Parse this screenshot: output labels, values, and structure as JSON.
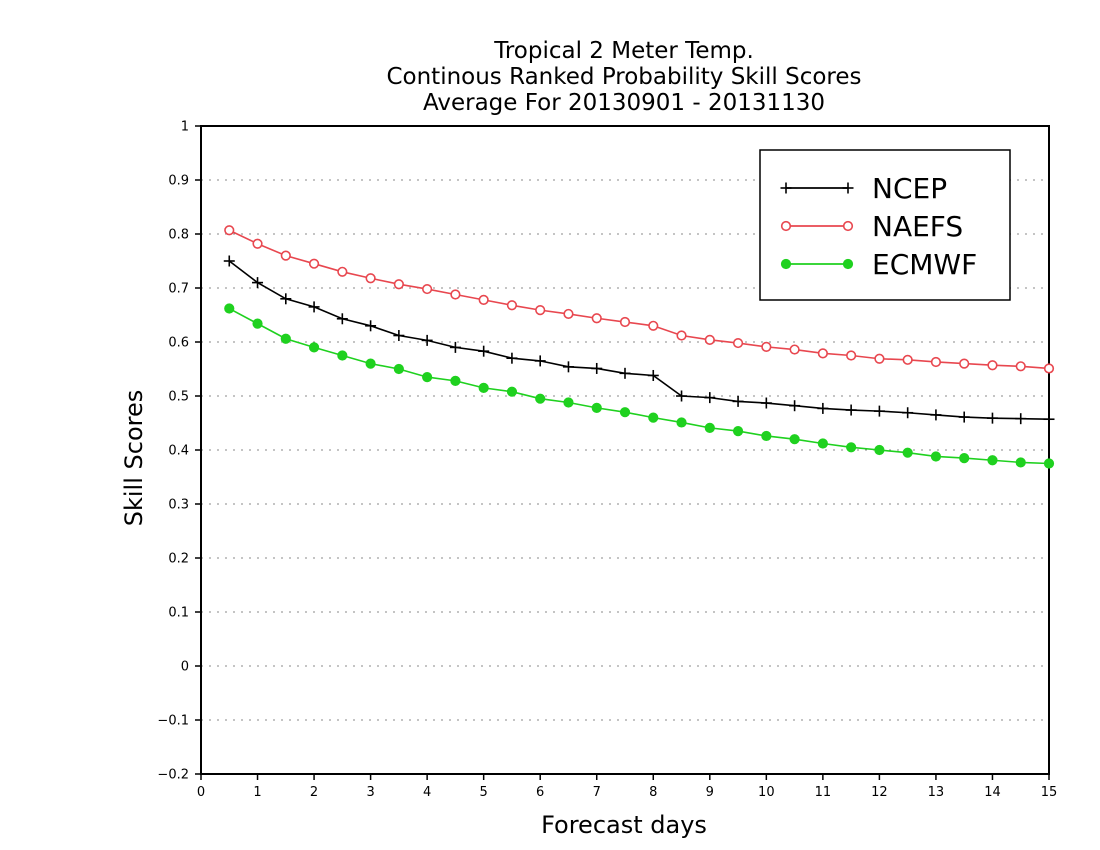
{
  "chart_data": {
    "type": "line",
    "title": [
      "Tropical 2 Meter Temp.",
      "Continous Ranked Probability Skill Scores",
      "Average For 20130901 - 20131130"
    ],
    "xlabel": "Forecast days",
    "ylabel": "Skill Scores",
    "xlim": [
      0,
      15
    ],
    "ylim": [
      -0.2,
      1
    ],
    "x_ticks": [
      "0",
      "1",
      "2",
      "3",
      "4",
      "5",
      "6",
      "7",
      "8",
      "9",
      "10",
      "11",
      "12",
      "13",
      "14",
      "15"
    ],
    "y_ticks": [
      "−0.2",
      "−0.1",
      "0",
      "0.1",
      "0.2",
      "0.3",
      "0.4",
      "0.5",
      "0.6",
      "0.7",
      "0.8",
      "0.9",
      "1"
    ],
    "y_tick_values": [
      -0.2,
      -0.1,
      0,
      0.1,
      0.2,
      0.3,
      0.4,
      0.5,
      0.6,
      0.7,
      0.8,
      0.9,
      1
    ],
    "grid": "horizontal-dotted",
    "legend_position": "top-right",
    "x": [
      0.5,
      1,
      1.5,
      2,
      2.5,
      3,
      3.5,
      4,
      4.5,
      5,
      5.5,
      6,
      6.5,
      7,
      7.5,
      8,
      8.5,
      9,
      9.5,
      10,
      10.5,
      11,
      11.5,
      12,
      12.5,
      13,
      13.5,
      14,
      14.5,
      15
    ],
    "series": [
      {
        "name": "NCEP",
        "color": "#000000",
        "marker": "plus",
        "values": [
          0.75,
          0.71,
          0.68,
          0.665,
          0.643,
          0.63,
          0.612,
          0.603,
          0.59,
          0.583,
          0.57,
          0.565,
          0.554,
          0.551,
          0.542,
          0.538,
          0.5,
          0.497,
          0.49,
          0.487,
          0.482,
          0.477,
          0.474,
          0.472,
          0.469,
          0.465,
          0.461,
          0.459,
          0.458,
          0.457
        ]
      },
      {
        "name": "NAEFS",
        "color": "#e8474f",
        "marker": "open-circle",
        "values": [
          0.807,
          0.782,
          0.76,
          0.745,
          0.73,
          0.718,
          0.707,
          0.698,
          0.688,
          0.678,
          0.668,
          0.659,
          0.652,
          0.644,
          0.637,
          0.63,
          0.612,
          0.604,
          0.598,
          0.591,
          0.586,
          0.579,
          0.575,
          0.569,
          0.567,
          0.563,
          0.56,
          0.557,
          0.555,
          0.551
        ]
      },
      {
        "name": "ECMWF",
        "color": "#1fd11f",
        "marker": "filled-circle",
        "values": [
          0.662,
          0.634,
          0.606,
          0.59,
          0.575,
          0.56,
          0.55,
          0.535,
          0.528,
          0.515,
          0.508,
          0.495,
          0.488,
          0.478,
          0.47,
          0.46,
          0.451,
          0.441,
          0.435,
          0.426,
          0.42,
          0.412,
          0.405,
          0.4,
          0.395,
          0.388,
          0.385,
          0.381,
          0.377,
          0.375
        ]
      }
    ]
  }
}
